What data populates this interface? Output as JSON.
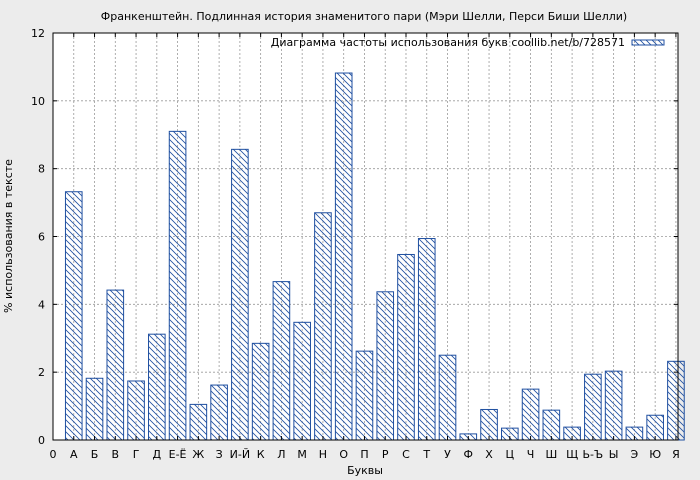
{
  "chart_data": {
    "type": "bar",
    "title": "Франкенштейн. Подлинная история знаменитого пари (Мэри Шелли, Перси Биши Шелли)",
    "xlabel": "Буквы",
    "ylabel": "% использования в тексте",
    "legend": "Диаграмма частоты использования букв coollib.net/b/728571",
    "legend_position": "top-right",
    "grid": true,
    "ylim": [
      0,
      12
    ],
    "yticks": [
      "0",
      "2",
      "4",
      "6",
      "8",
      "10",
      "12"
    ],
    "x_first_tick": "0",
    "categories": [
      "А",
      "Б",
      "В",
      "Г",
      "Д",
      "Е-Ё",
      "Ж",
      "З",
      "И-Й",
      "К",
      "Л",
      "М",
      "Н",
      "О",
      "П",
      "Р",
      "С",
      "Т",
      "У",
      "Ф",
      "Х",
      "Ц",
      "Ч",
      "Ш",
      "Щ",
      "Ь-Ъ",
      "Ы",
      "Э",
      "Ю",
      "Я"
    ],
    "values": [
      7.32,
      1.82,
      4.42,
      1.74,
      3.12,
      9.1,
      1.05,
      1.62,
      8.57,
      2.85,
      4.67,
      3.47,
      6.7,
      10.82,
      2.62,
      4.37,
      5.47,
      5.94,
      2.5,
      0.18,
      0.9,
      0.35,
      1.5,
      0.88,
      0.38,
      1.94,
      2.03,
      0.38,
      0.73,
      2.32
    ],
    "colors": {
      "bar_stroke": "#1f4fa0",
      "hatch": "#1f4fa0",
      "background": "#ececec",
      "plot_background": "#ffffff",
      "grid": "#9a9a9a"
    }
  }
}
